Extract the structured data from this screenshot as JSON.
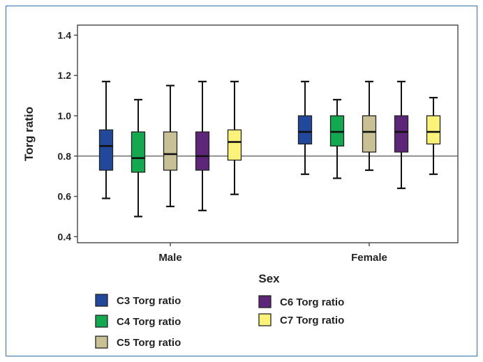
{
  "chart_data": {
    "type": "boxplot",
    "xlabel": "Sex",
    "ylabel": "Torg ratio",
    "ylim": [
      0.37,
      1.45
    ],
    "yticks": [
      "0.4",
      "0.6",
      "0.8",
      "1.0",
      "1.2",
      "1.4"
    ],
    "reference_line": 0.8,
    "categories": [
      "Male",
      "Female"
    ],
    "series": [
      {
        "name": "C3 Torg ratio",
        "color": "#22489c",
        "boxes": [
          {
            "min": 0.59,
            "q1": 0.73,
            "median": 0.85,
            "q3": 0.93,
            "max": 1.17
          },
          {
            "min": 0.71,
            "q1": 0.86,
            "median": 0.92,
            "q3": 1.0,
            "max": 1.17
          }
        ]
      },
      {
        "name": "C4 Torg ratio",
        "color": "#14a851",
        "boxes": [
          {
            "min": 0.5,
            "q1": 0.72,
            "median": 0.79,
            "q3": 0.92,
            "max": 1.08
          },
          {
            "min": 0.69,
            "q1": 0.85,
            "median": 0.92,
            "q3": 1.0,
            "max": 1.08
          }
        ]
      },
      {
        "name": "C5 Torg ratio",
        "color": "#c9c196",
        "boxes": [
          {
            "min": 0.55,
            "q1": 0.73,
            "median": 0.81,
            "q3": 0.92,
            "max": 1.15
          },
          {
            "min": 0.73,
            "q1": 0.82,
            "median": 0.92,
            "q3": 1.0,
            "max": 1.17
          }
        ]
      },
      {
        "name": "C6 Torg ratio",
        "color": "#5e2679",
        "boxes": [
          {
            "min": 0.53,
            "q1": 0.73,
            "median": 0.8,
            "q3": 0.92,
            "max": 1.17
          },
          {
            "min": 0.64,
            "q1": 0.82,
            "median": 0.92,
            "q3": 1.0,
            "max": 1.17
          }
        ]
      },
      {
        "name": "C7 Torg ratio",
        "color": "#fbf27a",
        "boxes": [
          {
            "min": 0.61,
            "q1": 0.78,
            "median": 0.87,
            "q3": 0.93,
            "max": 1.17
          },
          {
            "min": 0.71,
            "q1": 0.86,
            "median": 0.92,
            "q3": 1.0,
            "max": 1.09
          }
        ]
      }
    ],
    "legend_placement": "bottom"
  }
}
